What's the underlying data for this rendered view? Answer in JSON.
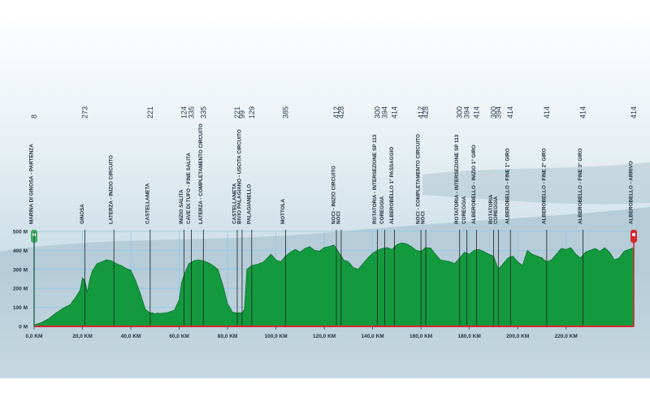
{
  "chart_data": {
    "type": "area",
    "xlabel": "",
    "ylabel": "",
    "xlim": [
      0,
      248
    ],
    "ylim": [
      0,
      500
    ],
    "x_ticks": [
      {
        "value": 0,
        "label": "0,0 KM"
      },
      {
        "value": 20,
        "label": "20,0 KM"
      },
      {
        "value": 40,
        "label": "40,0 KM"
      },
      {
        "value": 60,
        "label": "60,0 KM"
      },
      {
        "value": 80,
        "label": "80,0 KM"
      },
      {
        "value": 100,
        "label": "100,0 KM"
      },
      {
        "value": 120,
        "label": "120,0 KM"
      },
      {
        "value": 140,
        "label": "140,0 KM"
      },
      {
        "value": 160,
        "label": "160,0 KM"
      },
      {
        "value": 180,
        "label": "180,0 KM"
      },
      {
        "value": 200,
        "label": "200,0 KM"
      },
      {
        "value": 220,
        "label": "220,0 KM"
      }
    ],
    "y_ticks": [
      {
        "value": 0,
        "label": "0 M"
      },
      {
        "value": 100,
        "label": "100 M"
      },
      {
        "value": 200,
        "label": "200 M"
      },
      {
        "value": 300,
        "label": "300 M"
      },
      {
        "value": 400,
        "label": "400 M"
      },
      {
        "value": 500,
        "label": "500 M"
      }
    ],
    "grid": true,
    "colors": {
      "fill": "#139a3f",
      "edge": "#0b6e2a",
      "baseline": "#d9262e",
      "grid": "#8ec8ea",
      "start_marker": "#3fae5a",
      "finish_marker": "#d9262e",
      "marker_line": "#1f1f1f"
    },
    "profile": {
      "x": [
        0,
        3,
        6,
        9,
        12,
        15,
        17,
        19,
        20,
        21,
        22,
        23,
        24,
        26,
        28,
        30,
        32,
        34,
        36,
        38,
        40,
        42,
        44,
        46,
        48,
        49,
        50,
        51,
        52,
        55,
        58,
        60,
        61,
        62,
        63,
        64,
        66,
        68,
        70,
        72,
        74,
        76,
        78,
        80,
        82,
        84,
        85,
        86,
        87,
        88,
        90,
        92,
        95,
        98,
        100,
        102,
        104,
        106,
        108,
        110,
        112,
        114,
        116,
        118,
        120,
        122,
        124,
        126,
        128,
        130,
        132,
        134,
        136,
        138,
        140,
        142,
        144,
        146,
        148,
        150,
        152,
        154,
        156,
        158,
        160,
        162,
        164,
        166,
        168,
        170,
        172,
        174,
        176,
        178,
        180,
        182,
        184,
        186,
        188,
        190,
        192,
        194,
        196,
        198,
        200,
        202,
        204,
        206,
        208,
        210,
        212,
        214,
        216,
        218,
        220,
        222,
        224,
        226,
        228,
        230,
        232,
        234,
        236,
        238,
        240,
        242,
        244,
        246,
        248
      ],
      "y": [
        8,
        20,
        40,
        70,
        95,
        115,
        150,
        190,
        255,
        240,
        180,
        245,
        290,
        330,
        340,
        350,
        345,
        330,
        320,
        305,
        295,
        240,
        170,
        90,
        70,
        72,
        65,
        70,
        68,
        72,
        85,
        140,
        230,
        270,
        300,
        330,
        345,
        350,
        345,
        335,
        320,
        300,
        220,
        120,
        75,
        70,
        72,
        70,
        90,
        300,
        320,
        325,
        340,
        380,
        350,
        340,
        370,
        390,
        405,
        390,
        410,
        420,
        400,
        395,
        415,
        420,
        428,
        390,
        350,
        340,
        310,
        300,
        330,
        360,
        385,
        400,
        410,
        415,
        405,
        430,
        440,
        435,
        420,
        400,
        395,
        415,
        412,
        380,
        350,
        345,
        340,
        330,
        360,
        390,
        380,
        400,
        405,
        394,
        380,
        370,
        300,
        330,
        360,
        370,
        340,
        320,
        400,
        380,
        370,
        360,
        340,
        350,
        380,
        410,
        405,
        414,
        380,
        360,
        390,
        400,
        410,
        395,
        414,
        390,
        350,
        360,
        395,
        405,
        414
      ]
    },
    "markers": [
      {
        "x": 0,
        "altitude": "8",
        "name": "MARINA DI GINOSA - PARTENZA"
      },
      {
        "x": 21,
        "altitude": "273",
        "name": "GINOSA"
      },
      {
        "x": 33,
        "altitude": "",
        "name": "LATERZA - INIZIO CIRCUITO"
      },
      {
        "x": 48,
        "altitude": "221",
        "name": "CASTELLANETA"
      },
      {
        "x": 62,
        "altitude": "124",
        "name": "INIZIO SALITA"
      },
      {
        "x": 65,
        "altitude": "335",
        "name": "CAVE DI TUFO - FINE SALITA"
      },
      {
        "x": 70,
        "altitude": "335",
        "name": "LATERZA - COMPLETAMENTO CIRCUITO"
      },
      {
        "x": 84,
        "altitude": "221",
        "name": "CASTELLANETA"
      },
      {
        "x": 86,
        "altitude": "99",
        "name": "BIVIO PALAGIANO - USCITA CIRCUITO"
      },
      {
        "x": 90,
        "altitude": "129",
        "name": "PALAGIANELLO"
      },
      {
        "x": 104,
        "altitude": "385",
        "name": "MOTTOLA"
      },
      {
        "x": 125,
        "altitude": "412",
        "name": "NOCI - INIZIO CIRCUITO"
      },
      {
        "x": 127,
        "altitude": "428",
        "name": "NOCI"
      },
      {
        "x": 142,
        "altitude": "300",
        "name": "ROTATORIA - INTERSEZIONE SP 113"
      },
      {
        "x": 145,
        "altitude": "394",
        "name": "COREGGIA"
      },
      {
        "x": 149,
        "altitude": "414",
        "name": "ALBEROBELLO 1° PASSAGGIO"
      },
      {
        "x": 160,
        "altitude": "412",
        "name": "NOCI - COMPLETAMENTO CIRCUITO"
      },
      {
        "x": 162,
        "altitude": "428",
        "name": "NOCI"
      },
      {
        "x": 176,
        "altitude": "300",
        "name": "ROTATORIA - INTERSEZIONE SP 113"
      },
      {
        "x": 179,
        "altitude": "394",
        "name": "COREGGIA"
      },
      {
        "x": 183,
        "altitude": "414",
        "name": "ALBEROBELLO - INIZIO 1° GIRO"
      },
      {
        "x": 190,
        "altitude": "300",
        "name": "ROTATORIA"
      },
      {
        "x": 192,
        "altitude": "394",
        "name": "COREGGIA"
      },
      {
        "x": 197,
        "altitude": "414",
        "name": "ALBEROBELLO - FINE 1° GIRO"
      },
      {
        "x": 212,
        "altitude": "414",
        "name": "ALBEROBELLO - FINE 2° GIRO"
      },
      {
        "x": 227,
        "altitude": "414",
        "name": "ALBEROBELLO - FINE 3° GIRO"
      },
      {
        "x": 248,
        "altitude": "414",
        "name": "ALBEROBELLO - ARRIVO"
      }
    ]
  }
}
